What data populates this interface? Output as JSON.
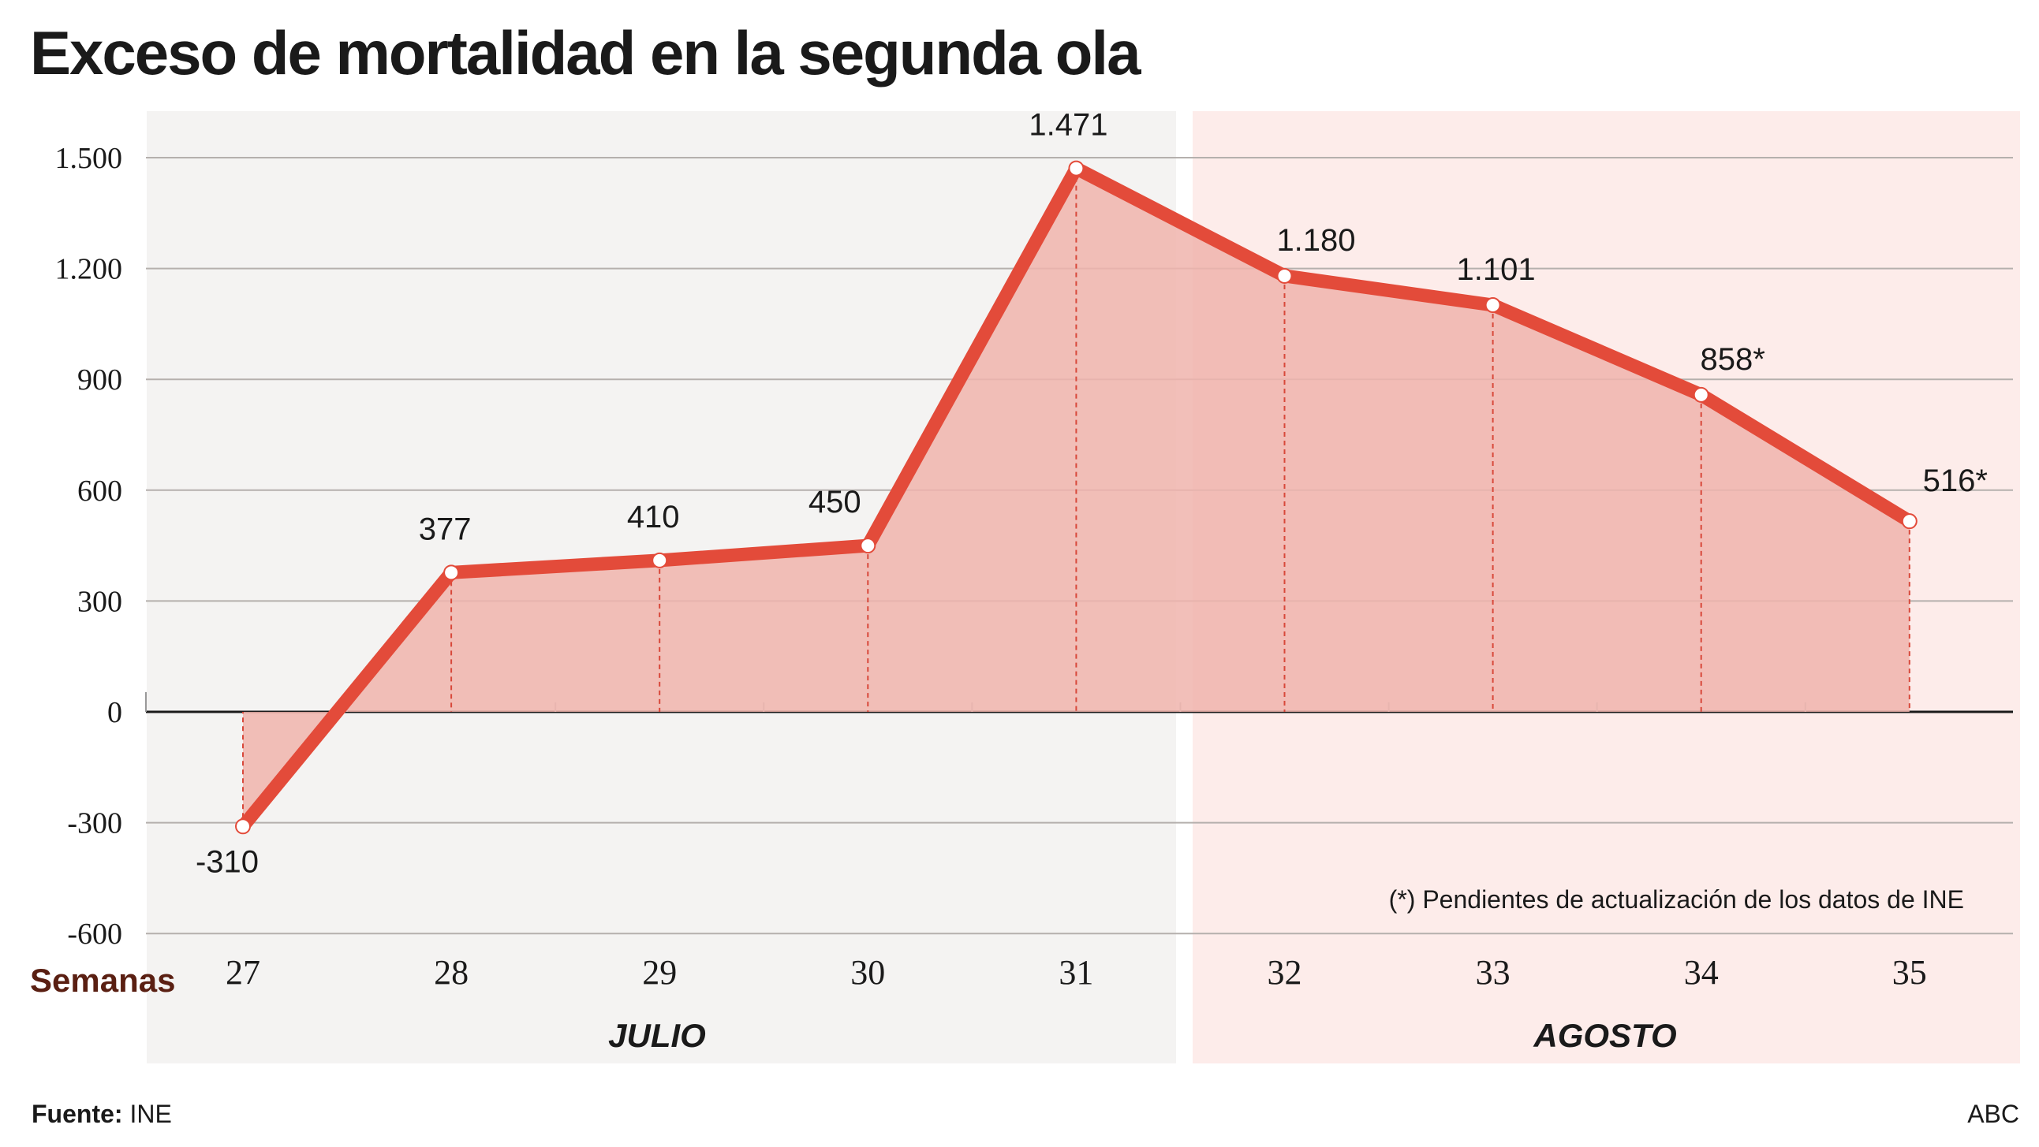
{
  "header": {
    "title": "Exceso de mortalidad en la segunda ola"
  },
  "footer": {
    "source_label": "Fuente:",
    "source_value": "INE",
    "credit": "ABC"
  },
  "colors": {
    "line": "#e34b3a",
    "area": "#f0b4ad",
    "julio_bg": "#f4f3f2",
    "agosto_bg": "#fdecea",
    "semanas": "#5a1f12"
  },
  "chart_data": {
    "type": "area",
    "title": "Exceso de mortalidad en la segunda ola",
    "xlabel": "Semanas",
    "ylabel": "",
    "x": [
      27,
      28,
      29,
      30,
      31,
      32,
      33,
      34,
      35
    ],
    "x_tick_labels": [
      "27",
      "28",
      "29",
      "30",
      "31",
      "32",
      "33",
      "34",
      "35"
    ],
    "values": [
      -310,
      377,
      410,
      450,
      1471,
      1180,
      1101,
      858,
      516
    ],
    "data_labels": [
      "-310",
      "377",
      "410",
      "450",
      "1.471",
      "1.180",
      "1.101",
      "858*",
      "516*"
    ],
    "ylim": [
      -600,
      1500
    ],
    "y_ticks": [
      1500,
      1200,
      900,
      600,
      300,
      0,
      -300,
      -600
    ],
    "y_tick_labels": [
      "1.500",
      "1.200",
      "900",
      "600",
      "300",
      "0",
      "-300",
      "-600"
    ],
    "grid": true,
    "periods": [
      {
        "label": "JULIO",
        "from_week": 27,
        "to_week": 31
      },
      {
        "label": "AGOSTO",
        "from_week": 32,
        "to_week": 35
      }
    ],
    "annotation": "(*) Pendientes de actualización de los datos de INE"
  }
}
